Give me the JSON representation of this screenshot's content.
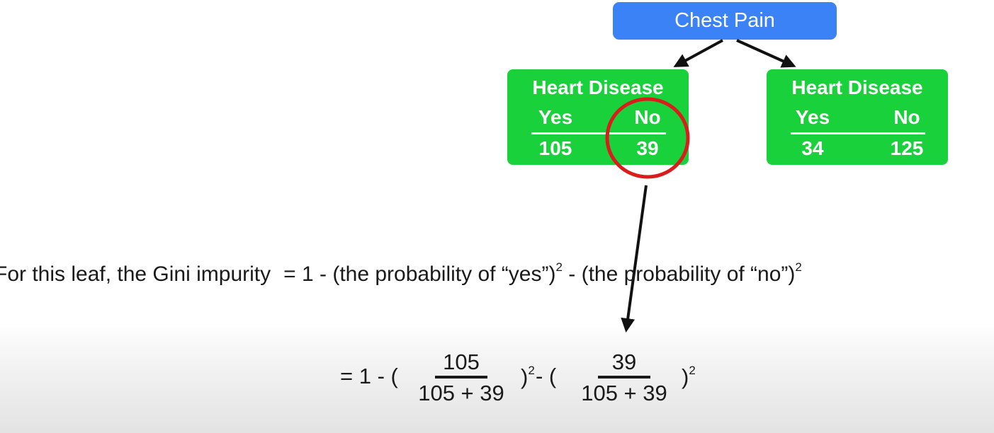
{
  "tree": {
    "root_label": "Chest Pain",
    "left_leaf": {
      "title": "Heart Disease",
      "yes_label": "Yes",
      "no_label": "No",
      "yes_value": "105",
      "no_value": "39"
    },
    "right_leaf": {
      "title": "Heart Disease",
      "yes_label": "Yes",
      "no_label": "No",
      "yes_value": "34",
      "no_value": "125"
    }
  },
  "explanation": {
    "prefix": "For this leaf, the Gini impurity",
    "rhs": "= 1 - (the probability of “yes”)",
    "exp1": "2",
    "middle": " - (the probability of “no”)",
    "exp2": "2"
  },
  "formula": {
    "lead": "= 1 - (",
    "frac1_num": "105",
    "frac1_den": "105 + 39",
    "close1": ")",
    "exp1": "2",
    "mid": " - (",
    "frac2_num": "39",
    "frac2_den": "105 + 39",
    "close2": ")",
    "exp2": "2"
  },
  "colors": {
    "root_fill": "#3b82f6",
    "leaf_fill": "#19d13b",
    "highlight_circle": "#d91c1c",
    "arrow": "#111111"
  }
}
